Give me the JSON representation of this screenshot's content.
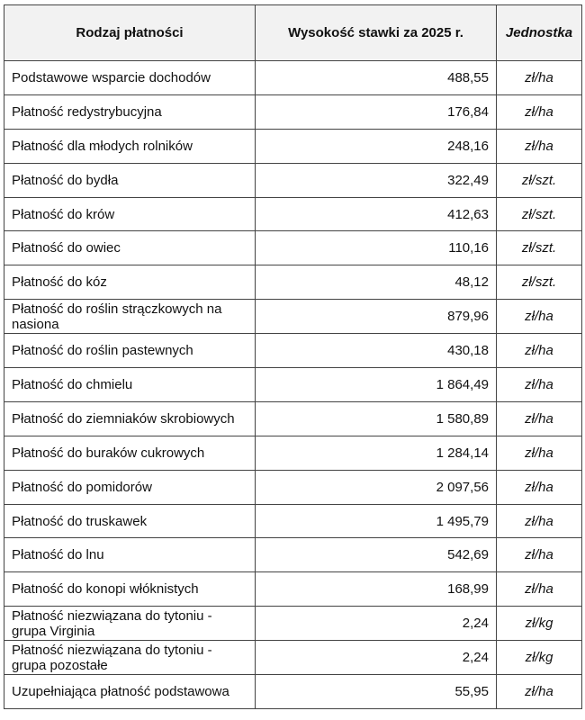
{
  "headers": {
    "type": "Rodzaj płatności",
    "rate": "Wysokość stawki za 2025 r.",
    "unit": "Jednostka"
  },
  "rows": [
    {
      "name": "Podstawowe wsparcie dochodów",
      "value": "488,55",
      "unit": "zł/ha"
    },
    {
      "name": "Płatność redystrybucyjna",
      "value": "176,84",
      "unit": "zł/ha"
    },
    {
      "name": "Płatność dla młodych rolników",
      "value": "248,16",
      "unit": "zł/ha"
    },
    {
      "name": "Płatność do bydła",
      "value": "322,49",
      "unit": "zł/szt."
    },
    {
      "name": "Płatność do krów",
      "value": "412,63",
      "unit": "zł/szt."
    },
    {
      "name": "Płatność do owiec",
      "value": "110,16",
      "unit": "zł/szt."
    },
    {
      "name": "Płatność do kóz",
      "value": "48,12",
      "unit": "zł/szt."
    },
    {
      "name": "Płatność do roślin strączkowych na nasiona",
      "value": "879,96",
      "unit": "zł/ha"
    },
    {
      "name": "Płatność do roślin pastewnych",
      "value": "430,18",
      "unit": "zł/ha"
    },
    {
      "name": "Płatność do chmielu",
      "value": "1 864,49",
      "unit": "zł/ha"
    },
    {
      "name": "Płatność do ziemniaków skrobiowych",
      "value": "1 580,89",
      "unit": "zł/ha"
    },
    {
      "name": "Płatność do buraków cukrowych",
      "value": "1 284,14",
      "unit": "zł/ha"
    },
    {
      "name": "Płatność do pomidorów",
      "value": "2 097,56",
      "unit": "zł/ha"
    },
    {
      "name": "Płatność do truskawek",
      "value": "1 495,79",
      "unit": "zł/ha"
    },
    {
      "name": "Płatność do lnu",
      "value": "542,69",
      "unit": "zł/ha"
    },
    {
      "name": "Płatność do konopi włóknistych",
      "value": "168,99",
      "unit": "zł/ha"
    },
    {
      "name": "Płatność niezwiązana do tytoniu - grupa Virginia",
      "value": "2,24",
      "unit": "zł/kg"
    },
    {
      "name": "Płatność niezwiązana do tytoniu - grupa pozostałe",
      "value": "2,24",
      "unit": "zł/kg"
    },
    {
      "name": "Uzupełniająca płatność podstawowa",
      "value": "55,95",
      "unit": "zł/ha"
    }
  ]
}
